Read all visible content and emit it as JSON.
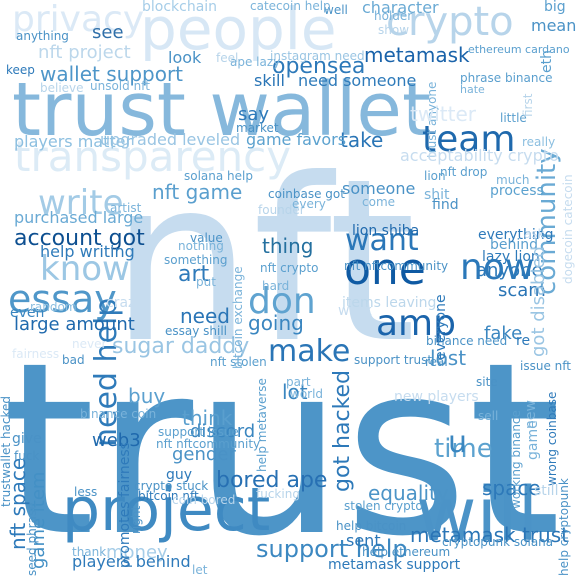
{
  "words": [
    {
      "text": "trust",
      "color": "#4d95c8"
    },
    {
      "text": "nft",
      "color": "#c6dcef"
    },
    {
      "text": "trust wallet",
      "color": "#86b8dc"
    },
    {
      "text": "people",
      "color": "#d7e7f5"
    },
    {
      "text": "project",
      "color": "#3f8ac2"
    },
    {
      "text": "will",
      "color": "#4b93c7"
    },
    {
      "text": "crypto",
      "color": "#b7d4ea"
    },
    {
      "text": "privacy",
      "color": "#dbe9f6"
    },
    {
      "text": "transparency",
      "color": "#dcebf6"
    },
    {
      "text": "team",
      "color": "#1f69ad"
    },
    {
      "text": "one",
      "color": "#0f5aa3"
    },
    {
      "text": "amp",
      "color": "#1b64ab"
    },
    {
      "text": "now",
      "color": "#2b78b9"
    },
    {
      "text": "know",
      "color": "#9cc7e4"
    },
    {
      "text": "essay",
      "color": "#4f97c9"
    },
    {
      "text": "write",
      "color": "#a3cbe6"
    },
    {
      "text": "don",
      "color": "#5fa3d0"
    },
    {
      "text": "make",
      "color": "#2a75b6"
    },
    {
      "text": "need help",
      "color": "#2f7bba"
    },
    {
      "text": "want",
      "color": "#2b77b8"
    },
    {
      "text": "time",
      "color": "#5ca2cf"
    },
    {
      "text": "community",
      "color": "#6aaad4"
    },
    {
      "text": "support help",
      "color": "#3c88c1"
    },
    {
      "text": "metamask trust",
      "color": "#2a75b6"
    },
    {
      "text": "got hacked",
      "color": "#2d79b9"
    },
    {
      "text": "u",
      "color": "#3a86c0"
    },
    {
      "text": "nft space",
      "color": "#2e7aba"
    },
    {
      "text": "game item",
      "color": "#4390c5"
    },
    {
      "text": "sugar daddy",
      "color": "#9ac5e3"
    },
    {
      "text": "bored ape",
      "color": "#2770b3"
    },
    {
      "text": "equality",
      "color": "#4c94c7"
    },
    {
      "text": "opensea",
      "color": "#2d79b9"
    },
    {
      "text": "metamask",
      "color": "#1a63aa"
    },
    {
      "text": "wallet support",
      "color": "#4e96c9"
    },
    {
      "text": "nft project",
      "color": "#bcd7eb"
    },
    {
      "text": "nft game",
      "color": "#5a9fce"
    },
    {
      "text": "account got",
      "color": "#0d4f90"
    },
    {
      "text": "lost",
      "color": "#4a92c6"
    },
    {
      "text": "art",
      "color": "#2e7aba"
    },
    {
      "text": "need",
      "color": "#2a75b6"
    },
    {
      "text": "thing",
      "color": "#24709f"
    },
    {
      "text": "going",
      "color": "#3a86c0"
    },
    {
      "text": "buy",
      "color": "#5ba0cf"
    },
    {
      "text": "lot",
      "color": "#3a86c0"
    },
    {
      "text": "think",
      "color": "#5a9fce"
    },
    {
      "text": "money",
      "color": "#a6cde8"
    },
    {
      "text": "see",
      "color": "#2f6fa9"
    },
    {
      "text": "take",
      "color": "#2a75b6"
    },
    {
      "text": "space",
      "color": "#2d79b9"
    },
    {
      "text": "fake",
      "color": "#3a86c0"
    },
    {
      "text": "scam",
      "color": "#2a75b6"
    },
    {
      "text": "anyone",
      "color": "#2d79b9"
    },
    {
      "text": "gender",
      "color": "#4a92c6"
    },
    {
      "text": "discord",
      "color": "#3a86c0"
    },
    {
      "text": "web3",
      "color": "#1f69ad"
    },
    {
      "text": "players behind",
      "color": "#2e7aba"
    },
    {
      "text": "metamask support",
      "color": "#2e7aba"
    },
    {
      "text": "sent",
      "color": "#2b77b8"
    },
    {
      "text": "large amount",
      "color": "#1f69ad"
    },
    {
      "text": "purchased large",
      "color": "#6aaad4"
    },
    {
      "text": "help writing",
      "color": "#2f7bba"
    },
    {
      "text": "lion shiba",
      "color": "#1f69ad"
    },
    {
      "text": "lazy lion",
      "color": "#2e7aba"
    },
    {
      "text": "behind",
      "color": "#5a9fce"
    },
    {
      "text": "everything",
      "color": "#2e7aba"
    },
    {
      "text": "someone",
      "color": "#4a92c6"
    },
    {
      "text": "process",
      "color": "#5ca2cf"
    },
    {
      "text": "need someone",
      "color": "#2f7bba"
    },
    {
      "text": "game favors",
      "color": "#5ca2cf"
    },
    {
      "text": "say",
      "color": "#2e7aba"
    },
    {
      "text": "skill",
      "color": "#2a75b6"
    },
    {
      "text": "look",
      "color": "#4a92c6"
    },
    {
      "text": "players matter",
      "color": "#8cbfe0"
    },
    {
      "text": "upgraded leveled",
      "color": "#9ac5e3"
    },
    {
      "text": "blockchain",
      "color": "#a6cde8"
    },
    {
      "text": "character",
      "color": "#6aaad4"
    },
    {
      "text": "mean",
      "color": "#4a92c6"
    },
    {
      "text": "big",
      "color": "#5a9fce"
    },
    {
      "text": "eth",
      "color": "#5a9fce"
    },
    {
      "text": "keep",
      "color": "#2e7aba"
    },
    {
      "text": "instagram need",
      "color": "#9ac5e3"
    },
    {
      "text": "ethereum cardano",
      "color": "#5a9fce"
    },
    {
      "text": "phrase binance",
      "color": "#5a9fce"
    },
    {
      "text": "hate",
      "color": "#7ab3da"
    },
    {
      "text": "really",
      "color": "#8cbfe0"
    },
    {
      "text": "little",
      "color": "#5a9fce"
    },
    {
      "text": "items leaving",
      "color": "#bcd7eb"
    },
    {
      "text": "got disabled",
      "color": "#9ac5e3"
    },
    {
      "text": "support issue",
      "color": "#5a9fce"
    },
    {
      "text": "nft nftcommunity",
      "color": "#5a9fce"
    },
    {
      "text": "promotes fairness",
      "color": "#2e7aba"
    },
    {
      "text": "trustwallet hacked",
      "color": "#4a92c6"
    },
    {
      "text": "working binance",
      "color": "#5a9fce"
    },
    {
      "text": "wrong coinbase",
      "color": "#2e7aba"
    },
    {
      "text": "issue nft",
      "color": "#4a92c6"
    },
    {
      "text": "help metaverse",
      "color": "#5a9fce"
    },
    {
      "text": "help bitcoin",
      "color": "#4a92c6"
    },
    {
      "text": "stolen crypto",
      "color": "#5a9fce"
    },
    {
      "text": "re",
      "color": "#2e7aba"
    },
    {
      "text": "bad",
      "color": "#4a92c6"
    },
    {
      "text": "give",
      "color": "#4a92c6"
    },
    {
      "text": "fuck",
      "color": "#4a92c6"
    },
    {
      "text": "guy",
      "color": "#2e7aba"
    },
    {
      "text": "even",
      "color": "#3a86c0"
    },
    {
      "text": "random",
      "color": "#8cbfe0"
    },
    {
      "text": "crypto stuck",
      "color": "#4a92c6"
    },
    {
      "text": "bitcoin nft",
      "color": "#2e7aba"
    },
    {
      "text": "coinbase got",
      "color": "#4a92c6"
    },
    {
      "text": "solana help",
      "color": "#5a9fce"
    },
    {
      "text": "lion",
      "color": "#5a9fce"
    },
    {
      "text": "nft drop",
      "color": "#5a9fce"
    },
    {
      "text": "shit",
      "color": "#7ab3da"
    },
    {
      "text": "find",
      "color": "#4a92c6"
    },
    {
      "text": "cryptopunk solana",
      "color": "#4a92c6"
    },
    {
      "text": "help ethereum",
      "color": "#4a92c6"
    },
    {
      "text": "support trust",
      "color": "#4a92c6"
    },
    {
      "text": "binance need",
      "color": "#4a92c6"
    },
    {
      "text": "still",
      "color": "#b7d4ea"
    },
    {
      "text": "help cryptopunk",
      "color": "#4a92c6"
    },
    {
      "text": "less",
      "color": "#4a92c6"
    },
    {
      "text": "thank",
      "color": "#7ab3da"
    },
    {
      "text": "right",
      "color": "#4a92c6"
    },
    {
      "text": "let",
      "color": "#7ab3da"
    },
    {
      "text": "new players",
      "color": "#c6dcef"
    },
    {
      "text": "game",
      "color": "#7ab3da"
    },
    {
      "text": "new",
      "color": "#7ab3da"
    },
    {
      "text": "market",
      "color": "#4a92c6"
    },
    {
      "text": "seed phrase",
      "color": "#4a92c6"
    },
    {
      "text": "nft stolen",
      "color": "#5a9fce"
    },
    {
      "text": "essay shill",
      "color": "#4a92c6"
    },
    {
      "text": "value",
      "color": "#4a92c6"
    },
    {
      "text": "nothing",
      "color": "#7ab3da"
    },
    {
      "text": "something",
      "color": "#5a9fce"
    },
    {
      "text": "nft crypto",
      "color": "#5a9fce"
    },
    {
      "text": "put",
      "color": "#7ab3da"
    },
    {
      "text": "hard",
      "color": "#7ab3da"
    },
    {
      "text": "bitcoin exchange",
      "color": "#7ab3da"
    },
    {
      "text": "work",
      "color": "#c6dcef"
    },
    {
      "text": "everyone",
      "color": "#2e7aba"
    },
    {
      "text": "much",
      "color": "#7ab3da"
    },
    {
      "text": "come",
      "color": "#7ab3da"
    },
    {
      "text": "founder",
      "color": "#b7d4ea"
    },
    {
      "text": "artist",
      "color": "#7ab3da"
    },
    {
      "text": "every",
      "color": "#7ab3da"
    },
    {
      "text": "nft nftcommunity",
      "color": "#4a92c6"
    },
    {
      "text": "real",
      "color": "#4a92c6"
    },
    {
      "text": "site",
      "color": "#4a92c6"
    },
    {
      "text": "sell",
      "color": "#7ab3da"
    },
    {
      "text": "part",
      "color": "#7ab3da"
    },
    {
      "text": "world",
      "color": "#7ab3da"
    },
    {
      "text": "fucking",
      "color": "#b7d4ea"
    },
    {
      "text": "coin bored",
      "color": "#b7d4ea"
    },
    {
      "text": "crazy",
      "color": "#c6dcef"
    },
    {
      "text": "binance coin",
      "color": "#7ab3da"
    },
    {
      "text": "holder",
      "color": "#7ab3da"
    },
    {
      "text": "show",
      "color": "#b7d4ea"
    },
    {
      "text": "well",
      "color": "#4a92c6"
    },
    {
      "text": "catecoin help",
      "color": "#7ab3da"
    },
    {
      "text": "anything",
      "color": "#4a92c6"
    },
    {
      "text": "feel",
      "color": "#b7d4ea"
    },
    {
      "text": "believe",
      "color": "#b7d4ea"
    },
    {
      "text": "unsold nft",
      "color": "#7ab3da"
    },
    {
      "text": "ape lazy",
      "color": "#7ab3da"
    },
    {
      "text": "trust anyone",
      "color": "#7ab3da"
    },
    {
      "text": "first",
      "color": "#b7d4ea"
    },
    {
      "text": "twitter",
      "color": "#dbe9f6"
    },
    {
      "text": "acceptability crypto",
      "color": "#c6dcef"
    },
    {
      "text": "dogecoin catecoin",
      "color": "#c6dcef"
    },
    {
      "text": "ask",
      "color": "#c6dcef"
    },
    {
      "text": "fairness",
      "color": "#dbe9f6"
    },
    {
      "text": "never",
      "color": "#dbe9f6"
    }
  ]
}
